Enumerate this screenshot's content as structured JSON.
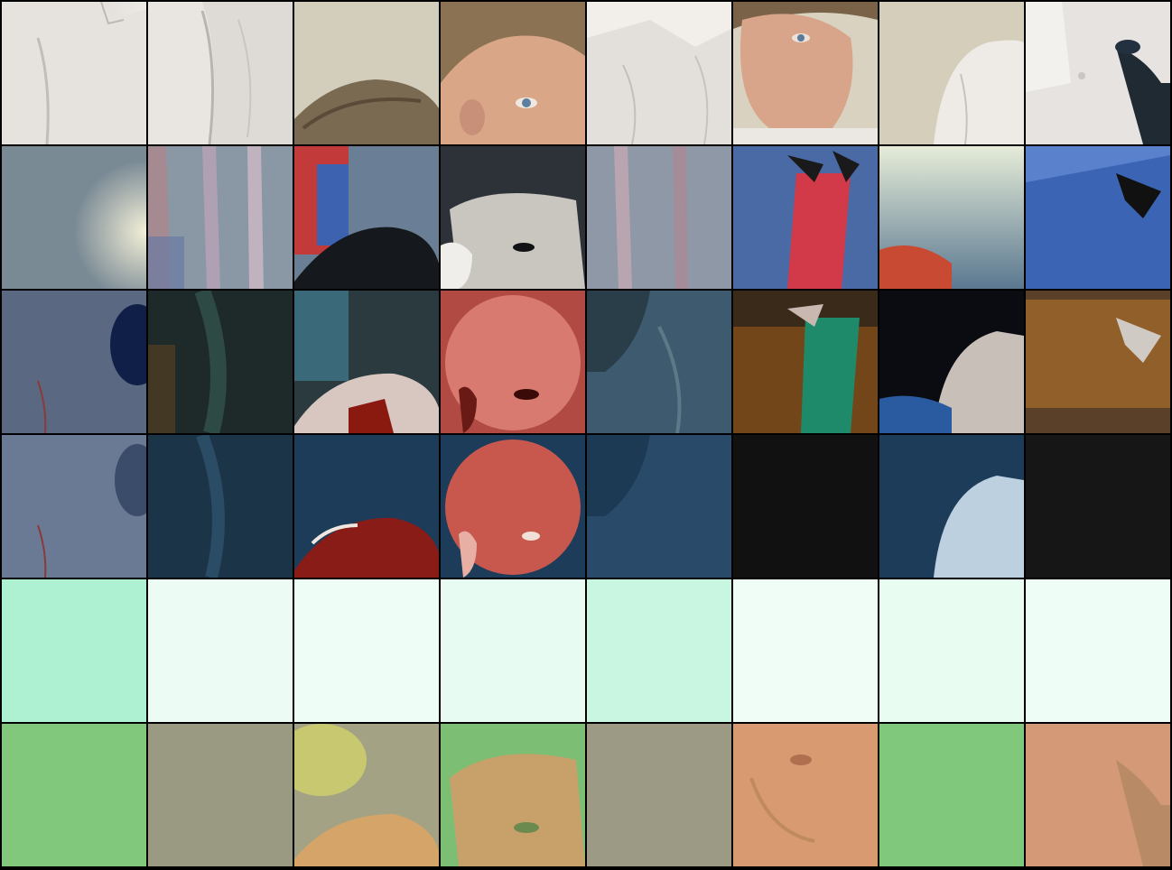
{
  "grid": {
    "rows": 6,
    "cols": 8,
    "background": "#000000",
    "tiles": [
      [
        "shirt-torso",
        "shirt-arm",
        "hair-top",
        "face-eyes",
        "shirt-collar",
        "face-portrait",
        "shirt-shoulder",
        "shirt-microphone"
      ],
      [
        "grey-haze",
        "shirt-glitch",
        "blue-checker-head",
        "face-bw",
        "shirt-glitch-2",
        "blue-checker-red",
        "haze-orange",
        "blue-checker"
      ],
      [
        "shirt-dark-blue",
        "dark-green-folds",
        "checker-red-head",
        "red-face",
        "shirt-dark-teal",
        "orange-checker-green",
        "dark-shoulder",
        "orange-checker"
      ],
      [
        "shirt-dark-blue-2",
        "navy-folds",
        "navy-red-head",
        "red-face-2",
        "navy-shirt",
        "black",
        "navy-shoulder",
        "black-2"
      ],
      [
        "mint",
        "mint-light",
        "mint-light",
        "mint-light",
        "mint",
        "mint-light",
        "mint-light",
        "mint-light"
      ],
      [
        "green",
        "khaki",
        "khaki-yellow",
        "green-face",
        "khaki-plain",
        "salmon-face",
        "green-2",
        "salmon-mic"
      ]
    ]
  },
  "colors": {
    "row1": [
      "#dcdad7",
      "#d9d6d1",
      "#cfc8b7",
      "#c9c2b0",
      "#dfdcd8",
      "#d4cdba",
      "#d2ccbc",
      "#e2e0dd"
    ],
    "row2": [
      "#7a8a95",
      "#8a97a5",
      "#3b5a86",
      "#2d3238",
      "#8e98a6",
      "#4a6aa6",
      "#6a8aa2",
      "#3c64b4"
    ],
    "row3": [
      "#5a6882",
      "#1e2a2a",
      "#3a6a7a",
      "#b04a42",
      "#3e5a6e",
      "#3a2a1a",
      "#1a2432",
      "#5a4028"
    ],
    "row4": [
      "#6a7a94",
      "#1c3448",
      "#1c3c5a",
      "#b0483e",
      "#2a4a6a",
      "#111111",
      "#1c3c5a",
      "#161616"
    ],
    "row5": [
      "#aef0d2",
      "#ecfcf4",
      "#eefdf5",
      "#e8fbf2",
      "#c8f6e0",
      "#f0fdf6",
      "#e8fcf1",
      "#eefdf5"
    ],
    "row6": [
      "#82c87c",
      "#9a9a82",
      "#b8b87c",
      "#7cbf74",
      "#9c9a84",
      "#d89a70",
      "#80c87c",
      "#d49a78"
    ]
  }
}
